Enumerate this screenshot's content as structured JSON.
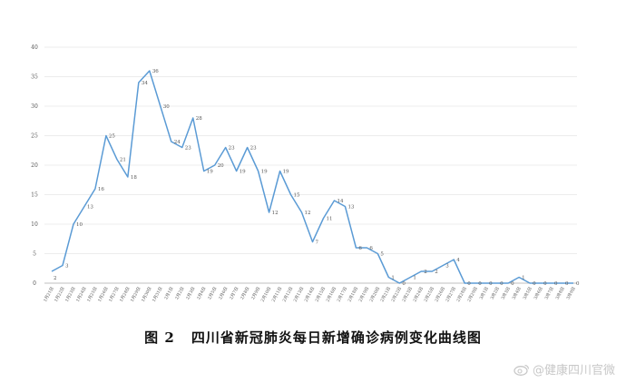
{
  "chart_data": {
    "type": "line",
    "title": "",
    "xlabel": "",
    "ylabel": "",
    "ylim": [
      0,
      40
    ],
    "yticks": [
      0,
      5,
      10,
      15,
      20,
      25,
      30,
      35,
      40
    ],
    "grid": true,
    "legend": "none",
    "line_color": "#5b9bd5",
    "categories": [
      "1月21日",
      "1月22日",
      "1月23日",
      "1月24日",
      "1月25日",
      "1月26日",
      "1月27日",
      "1月28日",
      "1月29日",
      "1月30日",
      "1月31日",
      "2月1日",
      "2月2日",
      "2月3日",
      "2月4日",
      "2月5日",
      "2月6日",
      "2月7日",
      "2月8日",
      "2月9日",
      "2月10日",
      "2月11日",
      "2月12日",
      "2月13日",
      "2月14日",
      "2月15日",
      "2月16日",
      "2月17日",
      "2月18日",
      "2月19日",
      "2月20日",
      "2月21日",
      "2月22日",
      "2月23日",
      "2月24日",
      "2月25日",
      "2月26日",
      "2月27日",
      "2月28日",
      "2月29日",
      "3月1日",
      "3月2日",
      "3月3日",
      "3月4日",
      "3月5日",
      "3月6日",
      "3月7日",
      "3月8日",
      "3月9日"
    ],
    "values": [
      2,
      3,
      10,
      13,
      16,
      25,
      21,
      18,
      34,
      36,
      30,
      24,
      23,
      28,
      19,
      20,
      23,
      19,
      23,
      19,
      12,
      19,
      15,
      12,
      7,
      11,
      14,
      13,
      6,
      6,
      5,
      1,
      0,
      1,
      2,
      2,
      3,
      4,
      0,
      0,
      0,
      0,
      0,
      1,
      0,
      0,
      0,
      0,
      0
    ],
    "data_labels": [
      "2",
      "3",
      "10",
      "13",
      "16",
      "25",
      "21",
      "18",
      "34",
      "36",
      "30",
      "24",
      "23",
      "28",
      "19",
      "20",
      "23",
      "19",
      "23",
      "19",
      "12",
      "19",
      "15",
      "12",
      "7",
      "11",
      "14",
      "13",
      "6",
      "6",
      "5",
      "1",
      "0",
      "1",
      "2",
      "2",
      "3",
      "4",
      "0",
      "0",
      "0",
      "0",
      "0",
      "1",
      "0",
      "0",
      "0",
      "0",
      "0"
    ]
  },
  "caption": {
    "figure_label": "图 2",
    "title": "四川省新冠肺炎每日新增确诊病例变化曲线图"
  },
  "watermark": {
    "text": "@健康四川官微",
    "icon": "weibo-icon"
  }
}
